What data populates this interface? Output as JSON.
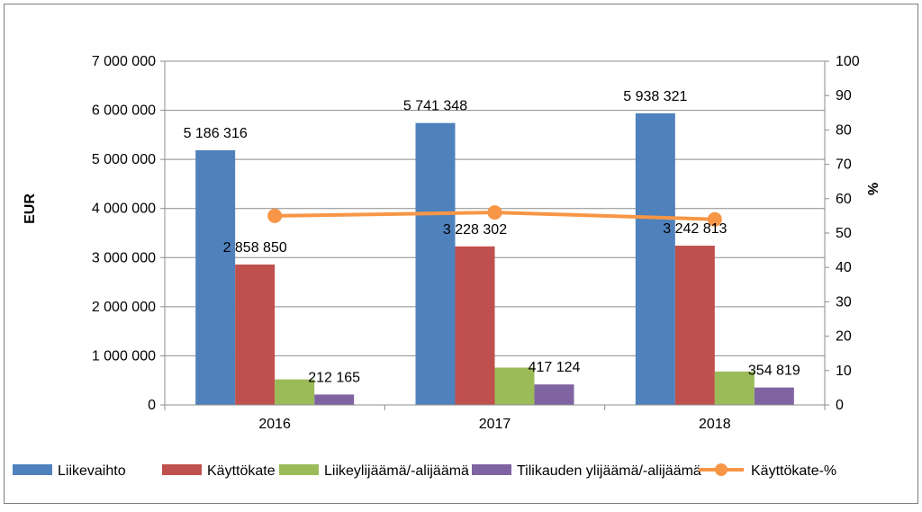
{
  "chart_data": {
    "type": "bar",
    "categories": [
      "2016",
      "2017",
      "2018"
    ],
    "series": [
      {
        "name": "Liikevaihto",
        "type": "bar",
        "axis": "left",
        "color": "#4F81BD",
        "values": [
          5186316,
          5741348,
          5938321
        ],
        "labels": [
          "5 186 316",
          "5 741 348",
          "5 938 321"
        ]
      },
      {
        "name": "Käyttökate",
        "type": "bar",
        "axis": "left",
        "color": "#C0504D",
        "values": [
          2858850,
          3228302,
          3242813
        ],
        "labels": [
          "2 858 850",
          "3 228 302",
          "3 242 813"
        ]
      },
      {
        "name": "Liikeylijäämä/-alijäämä",
        "type": "bar",
        "axis": "left",
        "color": "#9BBB59",
        "values": [
          520000,
          760000,
          680000
        ],
        "labels": [
          "",
          "",
          ""
        ]
      },
      {
        "name": "Tilikauden ylijäämä/-alijäämä",
        "type": "bar",
        "axis": "left",
        "color": "#8064A2",
        "values": [
          212165,
          417124,
          354819
        ],
        "labels": [
          "212 165",
          "417 124",
          "354 819"
        ]
      },
      {
        "name": "Käyttökate-%",
        "type": "line",
        "axis": "right",
        "color": "#F79646",
        "values": [
          55,
          56,
          54
        ],
        "labels": [
          "",
          "",
          ""
        ]
      }
    ],
    "y_left": {
      "label": "EUR",
      "min": 0,
      "max": 7000000,
      "ticks": [
        "0",
        "1 000 000",
        "2 000 000",
        "3 000 000",
        "4 000 000",
        "5 000 000",
        "6 000 000",
        "7 000 000"
      ]
    },
    "y_right": {
      "label": "%",
      "min": 0,
      "max": 100,
      "ticks": [
        "0",
        "10",
        "20",
        "30",
        "40",
        "50",
        "60",
        "70",
        "80",
        "90",
        "100"
      ]
    },
    "grid": true,
    "legend": "bottom"
  }
}
